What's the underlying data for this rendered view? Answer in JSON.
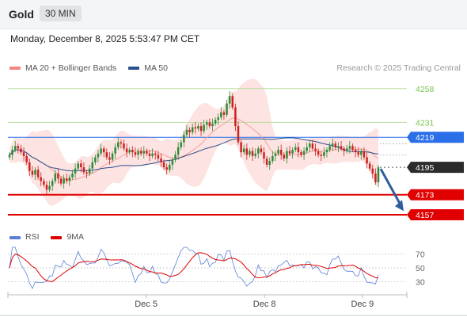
{
  "header": {
    "symbol": "Gold",
    "timeframe": "30 MIN"
  },
  "datetime": "Monday, December 8, 2025 5:53:47 PM CET",
  "legend": {
    "items": [
      {
        "label": "MA 20 + Bollinger Bands",
        "color": "#f3867f"
      },
      {
        "label": "MA 50",
        "color": "#2b4f8e"
      }
    ]
  },
  "credit": "Research © 2025 Trading Central",
  "rsi_legend": {
    "items": [
      {
        "label": "RSI",
        "color": "#5b7fd6"
      },
      {
        "label": "9MA",
        "color": "#e00000"
      }
    ]
  },
  "colors": {
    "up": "#2e8b3a",
    "down": "#cc2222",
    "support": "#e00000",
    "pivot": "#2a6ee8",
    "resistance": "#7cc24f",
    "arrow": "#2f5d9e",
    "current": "#2b2b2b"
  },
  "chart_data": {
    "type": "candlestick",
    "ylim": [
      4150,
      4268
    ],
    "x_ticks": [
      {
        "label": "Dec 5",
        "x": 60
      },
      {
        "label": "Dec 8",
        "x": 112
      },
      {
        "label": "Dec 9",
        "x": 155
      }
    ],
    "x_range": [
      0,
      162
    ],
    "levels": [
      {
        "value": 4258,
        "label": "4258",
        "kind": "resistance"
      },
      {
        "value": 4231,
        "label": "4231",
        "kind": "resistance"
      },
      {
        "value": 4219,
        "label": "4219",
        "kind": "pivot"
      },
      {
        "value": 4195,
        "label": "4195",
        "kind": "current"
      },
      {
        "value": 4173,
        "label": "4173",
        "kind": "support"
      },
      {
        "value": 4157,
        "label": "4157",
        "kind": "support"
      }
    ],
    "closes": [
      4205,
      4209,
      4212,
      4210,
      4207,
      4204,
      4199,
      4192,
      4189,
      4193,
      4187,
      4184,
      4181,
      4177,
      4180,
      4184,
      4190,
      4186,
      4182,
      4186,
      4184,
      4187,
      4190,
      4194,
      4198,
      4195,
      4191,
      4190,
      4194,
      4199,
      4203,
      4206,
      4210,
      4207,
      4203,
      4201,
      4206,
      4211,
      4215,
      4214,
      4210,
      4207,
      4209,
      4207,
      4205,
      4208,
      4206,
      4208,
      4206,
      4204,
      4206,
      4205,
      4202,
      4199,
      4195,
      4193,
      4197,
      4201,
      4205,
      4211,
      4215,
      4221,
      4225,
      4223,
      4227,
      4226,
      4228,
      4224,
      4229,
      4231,
      4228,
      4230,
      4233,
      4235,
      4239,
      4237,
      4246,
      4252,
      4243,
      4228,
      4215,
      4207,
      4210,
      4205,
      4208,
      4204,
      4206,
      4210,
      4207,
      4202,
      4197,
      4200,
      4204,
      4206,
      4209,
      4205,
      4202,
      4208,
      4206,
      4209,
      4211,
      4207,
      4205,
      4208,
      4211,
      4214,
      4210,
      4208,
      4205,
      4204,
      4207,
      4209,
      4212,
      4214,
      4211,
      4212,
      4210,
      4208,
      4210,
      4212,
      4209,
      4207,
      4205,
      4208,
      4203,
      4198,
      4194,
      4190,
      4183,
      4195
    ],
    "ma50_start": 4198,
    "rsi": {
      "ylim": [
        20,
        80
      ],
      "ticks": [
        70,
        50,
        30
      ]
    }
  }
}
